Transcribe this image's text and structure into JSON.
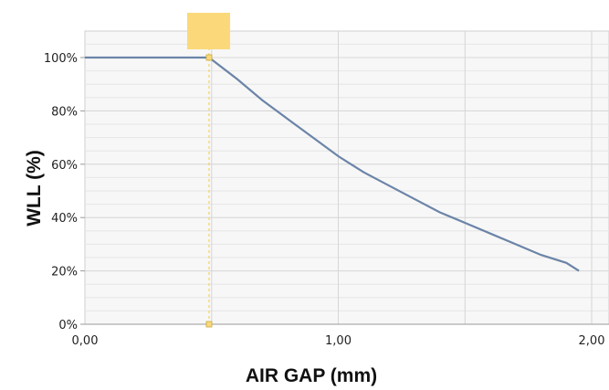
{
  "chart_data": {
    "type": "line",
    "title": "",
    "xlabel": "AIR GAP (mm)",
    "ylabel": "WLL (%)",
    "xlim": [
      0,
      2
    ],
    "ylim": [
      0,
      1.1
    ],
    "x_ticks": [
      0,
      0.5,
      1,
      1.5,
      2
    ],
    "x_tick_labels": [
      "0,00",
      "",
      "1,00",
      "",
      "2,00"
    ],
    "y_ticks": [
      0,
      0.2,
      0.4,
      0.6,
      0.8,
      1.0
    ],
    "y_tick_labels": [
      "0%",
      "20%",
      "40%",
      "60%",
      "80%",
      "100%"
    ],
    "grid": true,
    "legend": "none",
    "series": [
      {
        "color": "#6b84a8",
        "x": [
          0,
          0.49,
          0.6,
          0.7,
          0.8,
          0.9,
          1.0,
          1.1,
          1.2,
          1.3,
          1.4,
          1.5,
          1.6,
          1.7,
          1.8,
          1.9,
          1.95
        ],
        "y": [
          1.0,
          1.0,
          0.92,
          0.84,
          0.77,
          0.7,
          0.63,
          0.57,
          0.52,
          0.47,
          0.42,
          0.38,
          0.34,
          0.3,
          0.26,
          0.23,
          0.2
        ]
      }
    ],
    "marker": {
      "x": 0.49,
      "color": "#f5d35c",
      "fill": "#fbd97a"
    }
  }
}
